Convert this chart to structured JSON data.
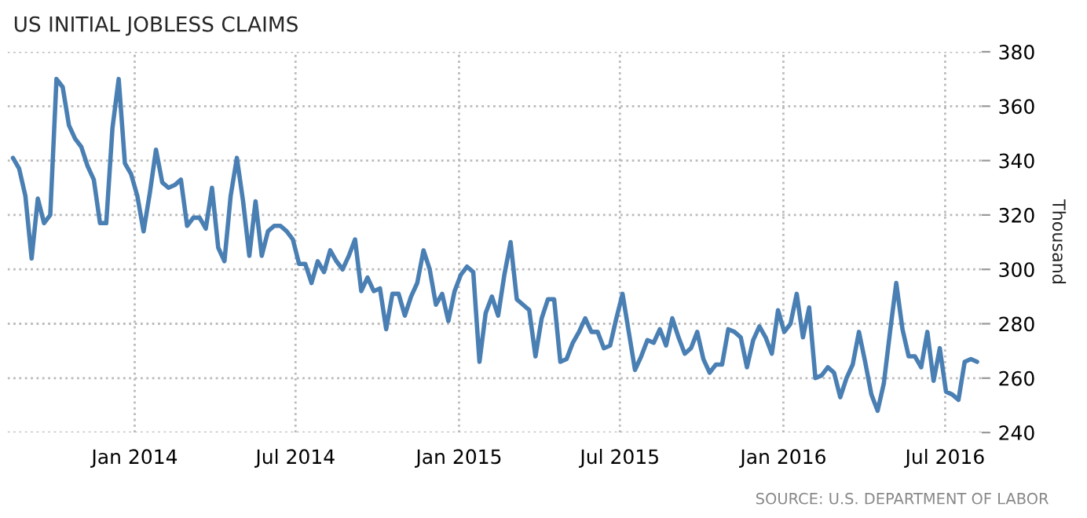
{
  "chart_data": {
    "type": "line",
    "title": "US INITIAL JOBLESS CLAIMS",
    "ylabel": "Thousand",
    "annotations": [
      "SOURCE: U.S. DEPARTMENT OF LABOR"
    ],
    "x": [
      "2013-08-17",
      "2013-08-24",
      "2013-08-31",
      "2013-09-07",
      "2013-09-14",
      "2013-09-21",
      "2013-09-28",
      "2013-10-05",
      "2013-10-12",
      "2013-10-19",
      "2013-10-26",
      "2013-11-02",
      "2013-11-09",
      "2013-11-16",
      "2013-11-23",
      "2013-11-30",
      "2013-12-07",
      "2013-12-14",
      "2013-12-21",
      "2013-12-28",
      "2014-01-04",
      "2014-01-11",
      "2014-01-18",
      "2014-01-25",
      "2014-02-01",
      "2014-02-08",
      "2014-02-15",
      "2014-02-22",
      "2014-03-01",
      "2014-03-08",
      "2014-03-15",
      "2014-03-22",
      "2014-03-29",
      "2014-04-05",
      "2014-04-12",
      "2014-04-19",
      "2014-04-26",
      "2014-05-03",
      "2014-05-10",
      "2014-05-17",
      "2014-05-24",
      "2014-05-31",
      "2014-06-07",
      "2014-06-14",
      "2014-06-21",
      "2014-06-28",
      "2014-07-05",
      "2014-07-12",
      "2014-07-19",
      "2014-07-26",
      "2014-08-02",
      "2014-08-09",
      "2014-08-16",
      "2014-08-23",
      "2014-08-30",
      "2014-09-06",
      "2014-09-13",
      "2014-09-20",
      "2014-09-27",
      "2014-10-04",
      "2014-10-11",
      "2014-10-18",
      "2014-10-25",
      "2014-11-01",
      "2014-11-08",
      "2014-11-15",
      "2014-11-22",
      "2014-11-29",
      "2014-12-06",
      "2014-12-13",
      "2014-12-20",
      "2014-12-27",
      "2015-01-03",
      "2015-01-10",
      "2015-01-17",
      "2015-01-24",
      "2015-01-31",
      "2015-02-07",
      "2015-02-14",
      "2015-02-21",
      "2015-02-28",
      "2015-03-07",
      "2015-03-14",
      "2015-03-21",
      "2015-03-28",
      "2015-04-04",
      "2015-04-11",
      "2015-04-18",
      "2015-04-25",
      "2015-05-02",
      "2015-05-09",
      "2015-05-16",
      "2015-05-23",
      "2015-05-30",
      "2015-06-06",
      "2015-06-13",
      "2015-06-20",
      "2015-06-27",
      "2015-07-04",
      "2015-07-11",
      "2015-07-18",
      "2015-07-25",
      "2015-08-01",
      "2015-08-08",
      "2015-08-15",
      "2015-08-22",
      "2015-08-29",
      "2015-09-05",
      "2015-09-12",
      "2015-09-19",
      "2015-09-26",
      "2015-10-03",
      "2015-10-10",
      "2015-10-17",
      "2015-10-24",
      "2015-10-31",
      "2015-11-07",
      "2015-11-14",
      "2015-11-21",
      "2015-11-28",
      "2015-12-05",
      "2015-12-12",
      "2015-12-19",
      "2015-12-26",
      "2016-01-02",
      "2016-01-09",
      "2016-01-16",
      "2016-01-23",
      "2016-01-30",
      "2016-02-06",
      "2016-02-13",
      "2016-02-20",
      "2016-02-27",
      "2016-03-05",
      "2016-03-12",
      "2016-03-19",
      "2016-03-26",
      "2016-04-02",
      "2016-04-09",
      "2016-04-16",
      "2016-04-23",
      "2016-04-30",
      "2016-05-07",
      "2016-05-14",
      "2016-05-21",
      "2016-05-28",
      "2016-06-04",
      "2016-06-11",
      "2016-06-18",
      "2016-06-25",
      "2016-07-02",
      "2016-07-09",
      "2016-07-16",
      "2016-07-23",
      "2016-07-30",
      "2016-08-06"
    ],
    "series": [
      {
        "color": "#4a7fb3",
        "values": [
          341,
          337,
          327,
          304,
          326,
          317,
          320,
          370,
          367,
          353,
          348,
          345,
          338,
          333,
          317,
          317,
          352,
          370,
          339,
          335,
          327,
          314,
          328,
          344,
          332,
          330,
          331,
          333,
          316,
          319,
          319,
          315,
          330,
          308,
          303,
          327,
          341,
          325,
          305,
          325,
          305,
          314,
          316,
          316,
          314,
          311,
          302,
          302,
          295,
          303,
          299,
          307,
          303,
          300,
          305,
          311,
          292,
          297,
          292,
          293,
          278,
          291,
          291,
          283,
          290,
          295,
          307,
          300,
          287,
          291,
          281,
          292,
          298,
          301,
          299,
          266,
          284,
          290,
          283,
          298,
          310,
          289,
          287,
          285,
          268,
          282,
          289,
          289,
          266,
          267,
          273,
          277,
          282,
          277,
          277,
          271,
          272,
          282,
          291,
          277,
          263,
          268,
          274,
          273,
          278,
          272,
          282,
          275,
          269,
          271,
          277,
          267,
          262,
          265,
          265,
          278,
          277,
          275,
          264,
          274,
          279,
          275,
          269,
          285,
          277,
          280,
          291,
          275,
          286,
          260,
          261,
          264,
          262,
          253,
          260,
          265,
          277,
          266,
          254,
          248,
          258,
          277,
          295,
          278,
          268,
          268,
          264,
          277,
          259,
          271,
          255,
          254,
          252,
          266,
          267,
          266
        ]
      }
    ],
    "xlim": [
      "2013-08-11",
      "2016-08-11"
    ],
    "xticks": [
      {
        "value": "2014-01-01",
        "label": "Jan 2014"
      },
      {
        "value": "2014-07-01",
        "label": "Jul 2014"
      },
      {
        "value": "2015-01-01",
        "label": "Jan 2015"
      },
      {
        "value": "2015-07-01",
        "label": "Jul 2015"
      },
      {
        "value": "2016-01-01",
        "label": "Jan 2016"
      },
      {
        "value": "2016-07-01",
        "label": "Jul 2016"
      }
    ],
    "ylim": [
      240,
      380
    ],
    "yticks": [
      240,
      260,
      280,
      300,
      320,
      340,
      360,
      380
    ],
    "grid": true,
    "marker": "none",
    "line_style": "solid"
  }
}
